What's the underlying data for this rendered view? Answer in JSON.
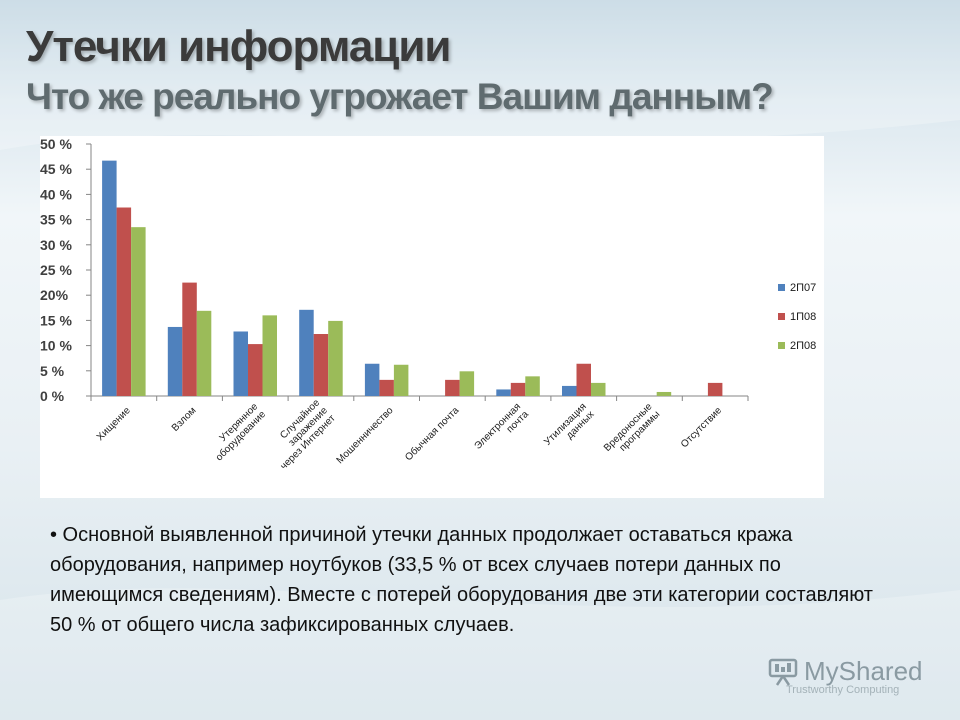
{
  "slide": {
    "title": "Утечки информации",
    "subtitle": "Что же реально угрожает Вашим данным?",
    "body": "• Основной выявленной причиной утечки данных продолжает оставаться кража оборудования, например ноутбуков (33,5 % от всех случаев потери данных по имеющимся сведениям). Вместе с потерей оборудования две эти категории составляют 50 % от общего числа зафиксированных случаев."
  },
  "watermark": {
    "brand": "MyShared",
    "tagline": "Trustworthy Computing"
  },
  "chart_data": {
    "type": "bar",
    "categories": [
      [
        "Хищение"
      ],
      [
        "Взлом"
      ],
      [
        "Утерянное",
        "оборудование"
      ],
      [
        "Случайное",
        "заражение",
        "через Интернет"
      ],
      [
        "Мошенничество"
      ],
      [
        "Обычная почта"
      ],
      [
        "Электронная",
        "почта"
      ],
      [
        "Утилизация",
        "данных"
      ],
      [
        "Вредоносные",
        "программы"
      ],
      [
        "Отсутствие"
      ]
    ],
    "series": [
      {
        "name": "2П07",
        "color": "#4f81bd",
        "values": [
          46.7,
          13.7,
          12.8,
          17.1,
          6.4,
          0,
          1.3,
          2.0,
          0,
          0
        ]
      },
      {
        "name": "1П08",
        "color": "#c0504d",
        "values": [
          37.4,
          22.5,
          10.3,
          12.3,
          3.2,
          3.2,
          2.6,
          6.4,
          0,
          2.6
        ]
      },
      {
        "name": "2П08",
        "color": "#9bbb59",
        "values": [
          33.5,
          16.9,
          16.0,
          14.9,
          6.2,
          4.9,
          3.9,
          2.6,
          0.8,
          0
        ]
      }
    ],
    "yticks": [
      "0 %",
      "5 %",
      "10 %",
      "15 %",
      "20%",
      "25 %",
      "30 %",
      "35 %",
      "40 %",
      "45 %",
      "50 %"
    ],
    "ylim": [
      0,
      50
    ],
    "grid": false,
    "legend": "right"
  }
}
